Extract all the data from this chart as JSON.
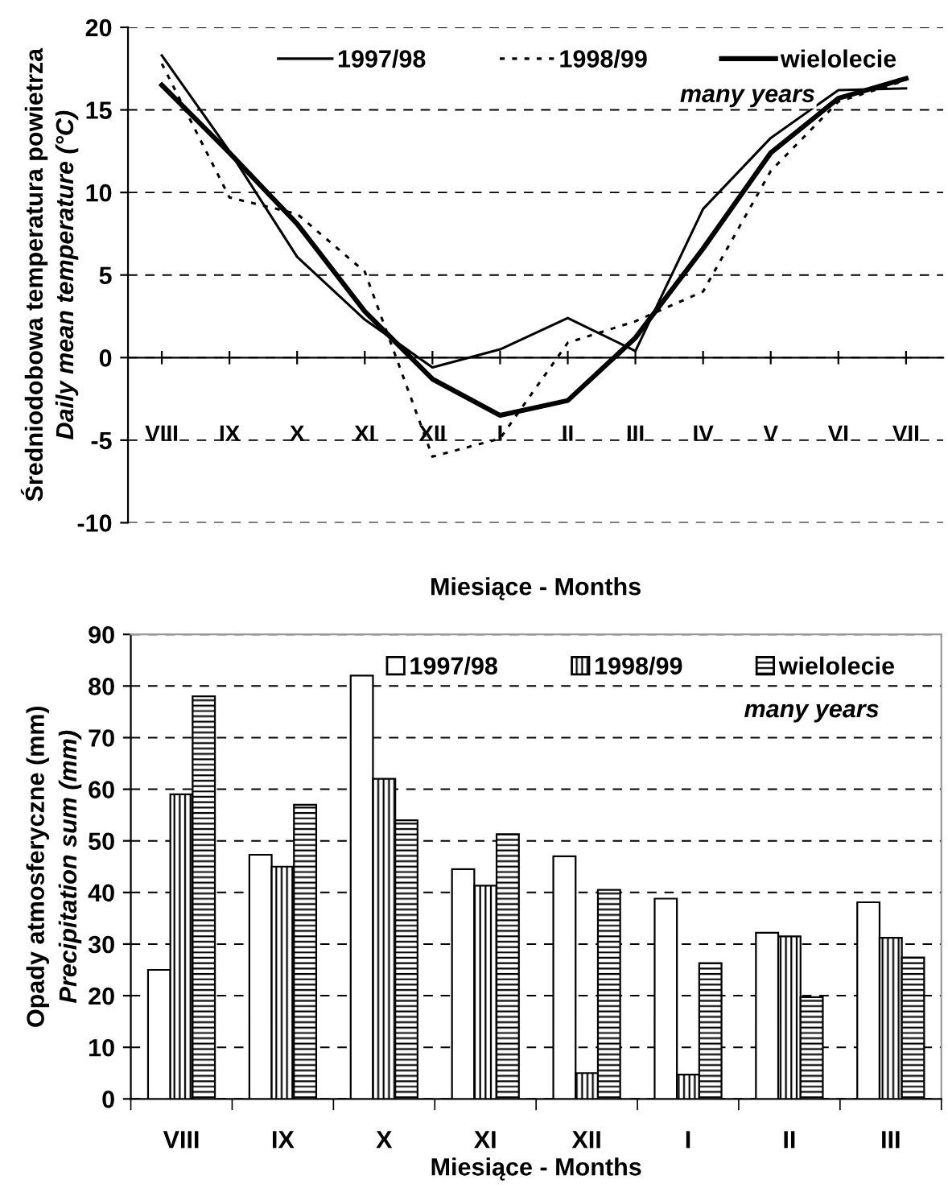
{
  "chart_data": [
    {
      "type": "line",
      "categories": [
        "VIII",
        "IX",
        "X",
        "XI",
        "XII",
        "I",
        "II",
        "III",
        "IV",
        "V",
        "VI",
        "VII"
      ],
      "xlabel": "Miesiące - Months",
      "ylabel": "Średniodobowa temperatura powietrza\nDaily mean temperature (°C)",
      "ylim": [
        -10,
        20
      ],
      "yticks": [
        -10,
        -5,
        0,
        5,
        10,
        15,
        20
      ],
      "grid": "y",
      "legend": "top right",
      "marker": "none",
      "annotations": [
        "many years"
      ],
      "series": [
        {
          "name": "1997/98",
          "color": "#000000",
          "line_style": "solid",
          "values": [
            18.3,
            12.5,
            6.1,
            2.3,
            -0.6,
            0.5,
            2.4,
            0.4,
            9.0,
            13.3,
            16.2,
            16.3
          ]
        },
        {
          "name": "1998/99",
          "color": "#000000",
          "line_style": "dotted",
          "values": [
            17.8,
            9.7,
            8.7,
            5.2,
            -6.0,
            -4.9,
            0.9,
            2.2,
            4.0,
            11.3,
            15.5,
            16.8
          ]
        },
        {
          "name": "wielolecie",
          "color": "#000000",
          "line_style": "solid",
          "values": [
            16.5,
            12.4,
            8.1,
            2.8,
            -1.3,
            -3.5,
            -2.6,
            1.2,
            6.6,
            12.4,
            15.7,
            16.9
          ]
        }
      ]
    },
    {
      "type": "bar",
      "categories": [
        "VIII",
        "IX",
        "X",
        "XI",
        "XII",
        "I",
        "II",
        "III"
      ],
      "xlabel": "Miesiące - Months",
      "ylabel": "Opady atmosferyczne (mm)\nPrecipitation sum (mm)",
      "ylim": [
        0,
        90
      ],
      "yticks": [
        0,
        10,
        20,
        30,
        40,
        50,
        60,
        70,
        80,
        90
      ],
      "grid": "y",
      "legend": "top right",
      "annotations": [
        "many years"
      ],
      "series": [
        {
          "name": "1997/98",
          "color": "#ffffff",
          "values": [
            25,
            47.3,
            82,
            44.5,
            47,
            38.8,
            32.2,
            38.1
          ]
        },
        {
          "name": "1998/99",
          "color": "#000000",
          "values": [
            59,
            45,
            62,
            41.3,
            5,
            4.7,
            31.5,
            31.2
          ]
        },
        {
          "name": "wielolecie",
          "color": "#000000",
          "values": [
            78,
            57,
            54,
            51.3,
            40.5,
            26.3,
            19.7,
            27.4
          ]
        }
      ]
    }
  ]
}
